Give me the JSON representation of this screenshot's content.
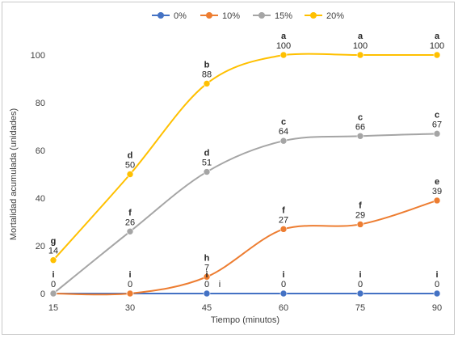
{
  "chart_data": {
    "type": "line",
    "title": "",
    "xlabel": "Tiempo (minutos)",
    "ylabel": "Mortalidad acumulada (unidades)",
    "x": [
      15,
      30,
      45,
      60,
      75,
      90
    ],
    "x_ticks": [
      "15",
      "30",
      "45",
      "60",
      "75",
      "90"
    ],
    "ylim": [
      0,
      100
    ],
    "y_ticks": [
      "0",
      "20",
      "40",
      "60",
      "80",
      "100"
    ],
    "grid": false,
    "legend_position": "top",
    "smooth": true,
    "series": [
      {
        "name": "0%",
        "color": "#4472C4",
        "values": [
          0,
          0,
          0,
          0,
          0,
          0
        ],
        "value_labels": [
          "0",
          "0",
          "0",
          "0",
          "0",
          "0"
        ],
        "letters": [
          "i",
          "i",
          "i",
          "i",
          "i",
          "i"
        ]
      },
      {
        "name": "10%",
        "color": "#ED7D31",
        "values": [
          0,
          0,
          7,
          27,
          29,
          39
        ],
        "value_labels": [
          "",
          "",
          "7",
          "27",
          "29",
          "39"
        ],
        "letters": [
          "",
          "",
          "h",
          "f",
          "f",
          "e"
        ]
      },
      {
        "name": "15%",
        "color": "#A5A5A5",
        "values": [
          0,
          26,
          51,
          64,
          66,
          67
        ],
        "value_labels": [
          "",
          "26",
          "51",
          "64",
          "66",
          "67"
        ],
        "letters": [
          "",
          "f",
          "d",
          "c",
          "c",
          "c"
        ]
      },
      {
        "name": "20%",
        "color": "#FFC000",
        "values": [
          14,
          50,
          88,
          100,
          100,
          100
        ],
        "value_labels": [
          "14",
          "50",
          "88",
          "100",
          "100",
          "100"
        ],
        "letters": [
          "g",
          "d",
          "b",
          "a",
          "a",
          "a"
        ]
      }
    ],
    "extra_annotations": [
      {
        "text": "i",
        "x": 45,
        "y": 0
      }
    ]
  }
}
